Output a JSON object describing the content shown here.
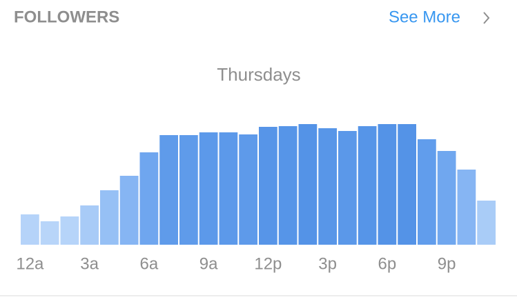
{
  "header": {
    "title": "FOLLOWERS",
    "link": "See More"
  },
  "chart_data": {
    "type": "bar",
    "title": "Thursdays",
    "categories": [
      "12a",
      null,
      null,
      "3a",
      null,
      null,
      "6a",
      null,
      null,
      "9a",
      null,
      null,
      "12p",
      null,
      null,
      "3p",
      null,
      null,
      "6p",
      null,
      null,
      "9p",
      null,
      null
    ],
    "values": [
      44,
      34,
      41,
      57,
      79,
      100,
      134,
      159,
      159,
      163,
      163,
      160,
      171,
      172,
      175,
      169,
      165,
      172,
      175,
      175,
      153,
      136,
      109,
      64
    ],
    "colors": [
      "#b5d3f9",
      "#b8d5f9",
      "#b6d4f9",
      "#a8cbf7",
      "#96c0f5",
      "#86b5f3",
      "#6fa6ef",
      "#5f9bea",
      "#5f9bea",
      "#5c99ea",
      "#5c99ea",
      "#5e9aea",
      "#5795e8",
      "#5695e8",
      "#5493e7",
      "#5896e8",
      "#5b98e9",
      "#5695e8",
      "#5493e7",
      "#5493e7",
      "#619dec",
      "#70a7ef",
      "#86b5f3",
      "#a9ccf7"
    ],
    "ylim": [
      0,
      175
    ]
  }
}
